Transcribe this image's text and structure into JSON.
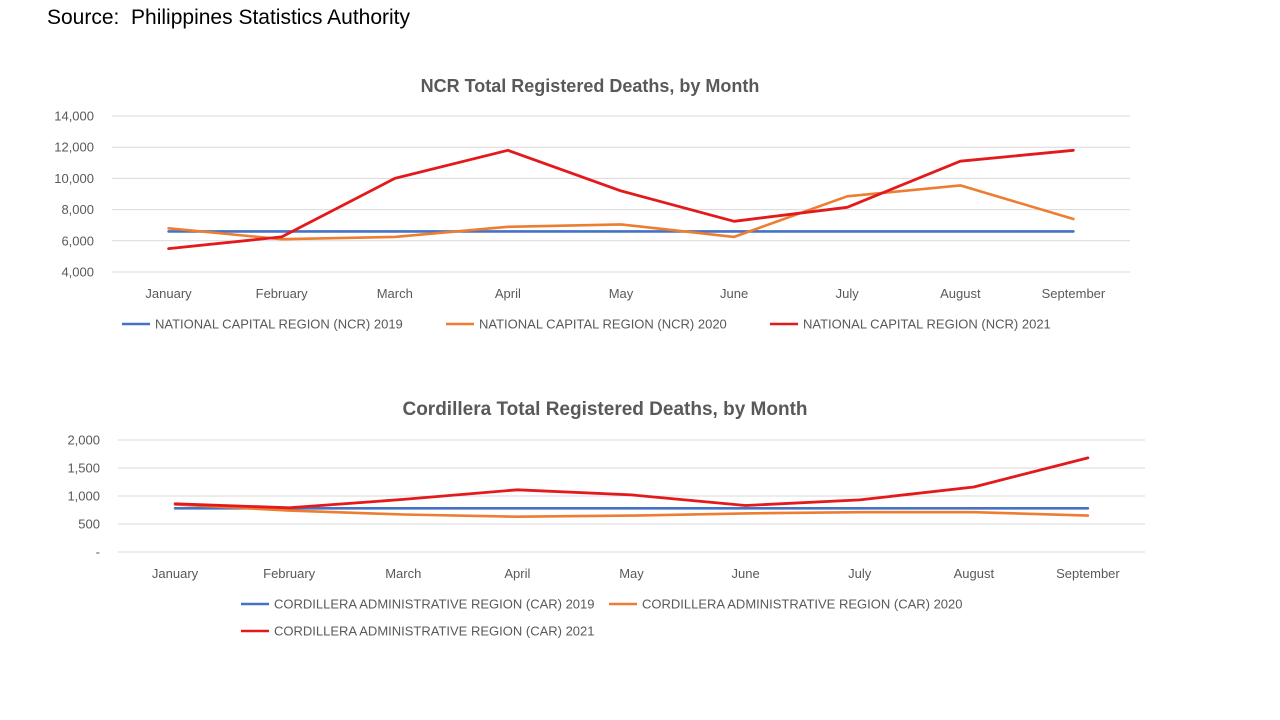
{
  "source": "Source:  Philippines Statistics Authority",
  "chart_data": [
    {
      "type": "line",
      "title": "NCR Total Registered Deaths,  by Month",
      "xlabel": "",
      "ylabel": "",
      "categories": [
        "January",
        "February",
        "March",
        "April",
        "May",
        "June",
        "July",
        "August",
        "September"
      ],
      "ylim": [
        4000,
        14000
      ],
      "yticks": [
        4000,
        6000,
        8000,
        10000,
        12000,
        14000
      ],
      "ytick_labels": [
        "4,000",
        "6,000",
        "8,000",
        "10,000",
        "12,000",
        "14,000"
      ],
      "grid": true,
      "legend_position": "bottom",
      "series": [
        {
          "name": "NATIONAL CAPITAL REGION (NCR) 2019",
          "color": "#4472c4",
          "values": [
            6600,
            6600,
            6600,
            6600,
            6600,
            6600,
            6600,
            6600,
            6600
          ]
        },
        {
          "name": "NATIONAL CAPITAL REGION (NCR) 2020",
          "color": "#ed7d31",
          "values": [
            6800,
            6100,
            6250,
            6900,
            7050,
            6250,
            8850,
            9550,
            7400
          ]
        },
        {
          "name": "NATIONAL CAPITAL REGION (NCR) 2021",
          "color": "#e31a1c",
          "values": [
            5500,
            6250,
            10000,
            11800,
            9200,
            7250,
            8150,
            11100,
            11800
          ]
        }
      ]
    },
    {
      "type": "line",
      "title": "Cordillera Total Registered Deaths, by Month",
      "xlabel": "",
      "ylabel": "",
      "categories": [
        "January",
        "February",
        "March",
        "April",
        "May",
        "June",
        "July",
        "August",
        "September"
      ],
      "ylim": [
        0,
        2000
      ],
      "yticks": [
        0,
        500,
        1000,
        1500,
        2000
      ],
      "ytick_labels": [
        "-",
        "500",
        "1,000",
        "1,500",
        "2,000"
      ],
      "grid": true,
      "legend_position": "bottom",
      "series": [
        {
          "name": "CORDILLERA ADMINISTRATIVE REGION (CAR) 2019",
          "color": "#4472c4",
          "values": [
            780,
            780,
            780,
            780,
            780,
            780,
            780,
            780,
            780
          ]
        },
        {
          "name": "CORDILLERA ADMINISTRATIVE REGION (CAR) 2020",
          "color": "#ed7d31",
          "values": [
            850,
            740,
            670,
            630,
            650,
            690,
            710,
            710,
            650
          ]
        },
        {
          "name": "CORDILLERA ADMINISTRATIVE REGION (CAR) 2021",
          "color": "#e31a1c",
          "values": [
            860,
            790,
            940,
            1110,
            1020,
            830,
            930,
            1160,
            1680
          ]
        }
      ]
    }
  ]
}
